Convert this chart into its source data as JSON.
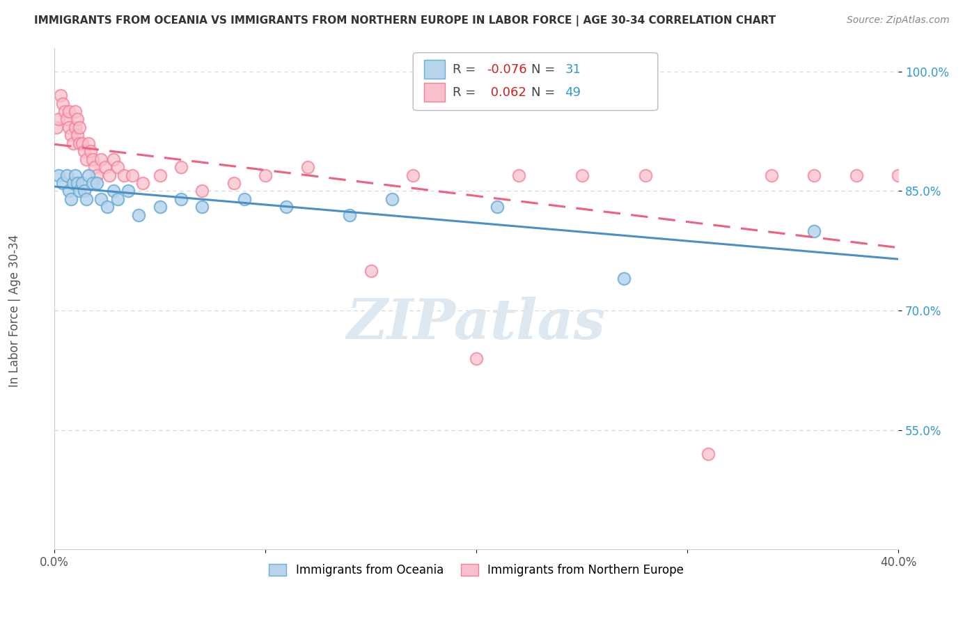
{
  "title": "IMMIGRANTS FROM OCEANIA VS IMMIGRANTS FROM NORTHERN EUROPE IN LABOR FORCE | AGE 30-34 CORRELATION CHART",
  "source": "Source: ZipAtlas.com",
  "ylabel": "In Labor Force | Age 30-34",
  "xlim": [
    0.0,
    0.4
  ],
  "ylim": [
    0.4,
    1.03
  ],
  "yticks": [
    0.55,
    0.7,
    0.85,
    1.0
  ],
  "ytick_labels": [
    "55.0%",
    "70.0%",
    "85.0%",
    "100.0%"
  ],
  "xticks": [
    0.0,
    0.1,
    0.2,
    0.3,
    0.4
  ],
  "xtick_labels": [
    "0.0%",
    "",
    "",
    "",
    "40.0%"
  ],
  "R_oceania": -0.076,
  "N_oceania": 31,
  "R_northern": 0.062,
  "N_northern": 49,
  "blue_fill": "#b8d4ea",
  "blue_edge": "#6aaed6",
  "pink_fill": "#f8c0cc",
  "pink_edge": "#f48098",
  "blue_line": "#4a90c8",
  "pink_line": "#f06080",
  "legend_blue_label": "Immigrants from Oceania",
  "legend_pink_label": "Immigrants from Northern Europe",
  "scatter_blue_x": [
    0.002,
    0.004,
    0.006,
    0.007,
    0.008,
    0.009,
    0.01,
    0.011,
    0.012,
    0.013,
    0.014,
    0.015,
    0.016,
    0.018,
    0.02,
    0.022,
    0.025,
    0.028,
    0.03,
    0.035,
    0.04,
    0.05,
    0.06,
    0.07,
    0.09,
    0.11,
    0.14,
    0.16,
    0.21,
    0.27,
    0.36
  ],
  "scatter_blue_y": [
    0.87,
    0.86,
    0.87,
    0.85,
    0.84,
    0.86,
    0.87,
    0.86,
    0.85,
    0.86,
    0.85,
    0.84,
    0.87,
    0.86,
    0.86,
    0.84,
    0.83,
    0.85,
    0.84,
    0.85,
    0.82,
    0.83,
    0.84,
    0.83,
    0.84,
    0.83,
    0.82,
    0.84,
    0.83,
    0.74,
    0.8
  ],
  "scatter_pink_x": [
    0.001,
    0.002,
    0.003,
    0.004,
    0.005,
    0.006,
    0.007,
    0.007,
    0.008,
    0.009,
    0.01,
    0.01,
    0.011,
    0.011,
    0.012,
    0.012,
    0.013,
    0.014,
    0.015,
    0.016,
    0.017,
    0.018,
    0.019,
    0.02,
    0.022,
    0.024,
    0.026,
    0.028,
    0.03,
    0.033,
    0.037,
    0.042,
    0.05,
    0.06,
    0.07,
    0.085,
    0.1,
    0.12,
    0.15,
    0.17,
    0.2,
    0.22,
    0.25,
    0.28,
    0.31,
    0.34,
    0.36,
    0.38,
    0.4
  ],
  "scatter_pink_y": [
    0.93,
    0.94,
    0.97,
    0.96,
    0.95,
    0.94,
    0.93,
    0.95,
    0.92,
    0.91,
    0.93,
    0.95,
    0.94,
    0.92,
    0.91,
    0.93,
    0.91,
    0.9,
    0.89,
    0.91,
    0.9,
    0.89,
    0.88,
    0.87,
    0.89,
    0.88,
    0.87,
    0.89,
    0.88,
    0.87,
    0.87,
    0.86,
    0.87,
    0.88,
    0.85,
    0.86,
    0.87,
    0.88,
    0.75,
    0.87,
    0.64,
    0.87,
    0.87,
    0.87,
    0.52,
    0.87,
    0.87,
    0.87,
    0.87
  ],
  "background_color": "#ffffff",
  "grid_color": "#cccccc",
  "watermark_text": "ZIPatlas",
  "watermark_color": "#dde8f0"
}
